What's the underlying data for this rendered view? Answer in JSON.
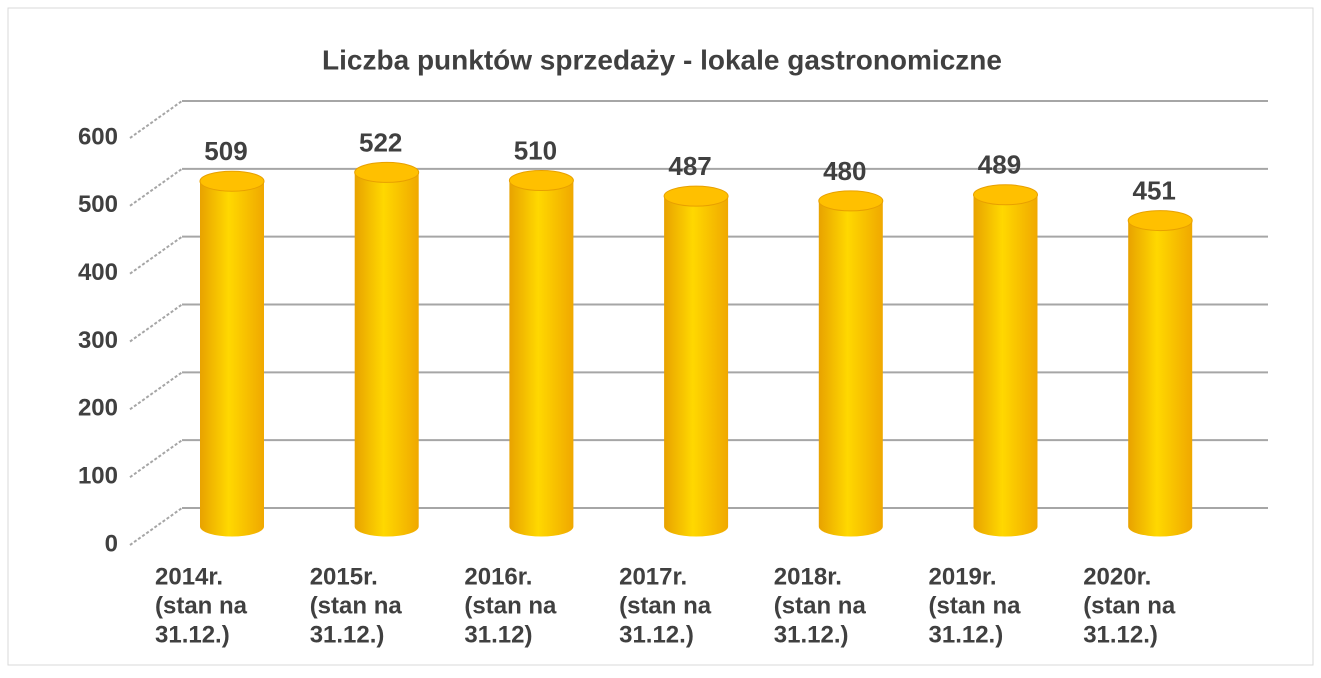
{
  "chart_data": {
    "type": "bar3d",
    "title": "Liczba punktów sprzedaży - lokale gastronomiczne",
    "categories": [
      [
        "2014r.",
        "(stan na",
        "31.12.)"
      ],
      [
        "2015r.",
        "(stan na",
        "31.12.)"
      ],
      [
        "2016r.",
        "(stan na",
        "31.12)"
      ],
      [
        "2017r.",
        "(stan na",
        "31.12.)"
      ],
      [
        "2018r.",
        "(stan na",
        "31.12.)"
      ],
      [
        "2019r.",
        "(stan na",
        "31.12.)"
      ],
      [
        "2020r.",
        "(stan na",
        "31.12.)"
      ]
    ],
    "values": [
      509,
      522,
      510,
      487,
      480,
      489,
      451
    ],
    "color": "#ffc000",
    "ylim": [
      0,
      600
    ],
    "yticks": [
      0,
      100,
      200,
      300,
      400,
      500,
      600
    ],
    "grid": true
  }
}
